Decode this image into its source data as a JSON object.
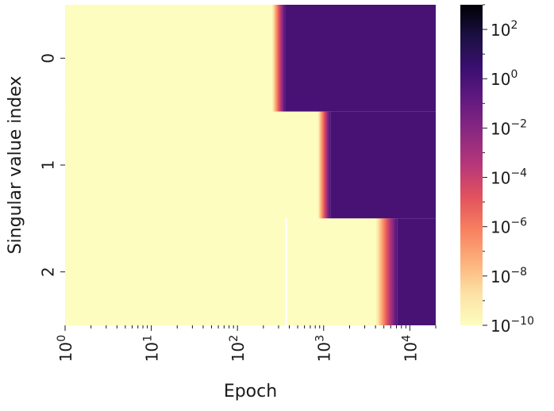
{
  "chart_data": {
    "type": "heatmap",
    "xlabel": "Epoch",
    "ylabel": "Singular value index",
    "x_scale": "log",
    "x_range": [
      1,
      20000
    ],
    "x_ticks": [
      {
        "base": "10",
        "exp": "0",
        "value": 1
      },
      {
        "base": "10",
        "exp": "1",
        "value": 10
      },
      {
        "base": "10",
        "exp": "2",
        "value": 100
      },
      {
        "base": "10",
        "exp": "3",
        "value": 1000
      },
      {
        "base": "10",
        "exp": "4",
        "value": 10000
      }
    ],
    "rows": [
      {
        "label": "0",
        "transition_start": 250,
        "transition_end": 360,
        "high_value": 1
      },
      {
        "label": "1",
        "transition_start": 850,
        "transition_end": 1200,
        "high_value": 1
      },
      {
        "label": "2",
        "transition_start": 4000,
        "transition_end": 7200,
        "high_value": 1,
        "glitch_epoch": 370
      }
    ],
    "low_value": 1e-10,
    "colorbar": {
      "scale": "log",
      "range": [
        1e-10,
        1000
      ],
      "colormap": "magma_r",
      "ticks": [
        {
          "base": "10",
          "exp": "2",
          "value": 100
        },
        {
          "base": "10",
          "exp": "0",
          "value": 1
        },
        {
          "base": "10",
          "exp": "−2",
          "value": 0.01
        },
        {
          "base": "10",
          "exp": "−4",
          "value": 0.0001
        },
        {
          "base": "10",
          "exp": "−6",
          "value": 1e-06
        },
        {
          "base": "10",
          "exp": "−8",
          "value": 1e-08
        },
        {
          "base": "10",
          "exp": "−10",
          "value": 1e-10
        }
      ]
    },
    "grid": false
  }
}
